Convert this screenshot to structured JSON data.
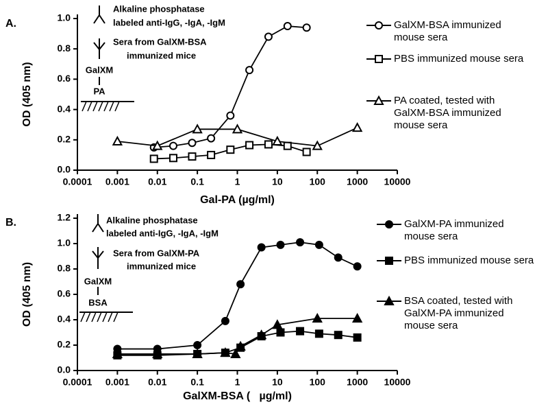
{
  "chart_data": [
    {
      "type": "line",
      "panel": "A.",
      "y_label": "OD (405 nm)",
      "x_label": "Gal-PA (µg/ml)",
      "log_x": true,
      "xlim": [
        0.0001,
        10000
      ],
      "xticks": [
        0.0001,
        0.001,
        0.01,
        0.1,
        1,
        10,
        100,
        1000,
        10000
      ],
      "ylim": [
        0,
        1.0
      ],
      "yticks": [
        {
          "value": 0,
          "label": "0.0"
        },
        0.2,
        0.4,
        0.6,
        0.8,
        {
          "value": 1,
          "label": "1.0"
        }
      ],
      "diagram": [
        "Alkaline phosphatase",
        "labeled anti-IgG, -IgA, -IgM",
        "Sera from GalXM-BSA",
        "immunized mice",
        "GalXM",
        "PA"
      ],
      "marker_fill": "white",
      "series": [
        {
          "name": "GalXM-BSA immunized mouse sera",
          "marker": "circle",
          "color": "#000000",
          "x": [
            0.0082,
            0.025,
            0.074,
            0.22,
            0.67,
            2,
            6,
            18,
            54
          ],
          "values": [
            0.15,
            0.16,
            0.18,
            0.21,
            0.36,
            0.66,
            0.88,
            0.95,
            0.94
          ]
        },
        {
          "name": "PBS immunized mouse sera",
          "marker": "square",
          "color": "#000000",
          "x": [
            0.0082,
            0.025,
            0.074,
            0.22,
            0.67,
            2,
            6,
            18,
            54
          ],
          "values": [
            0.075,
            0.08,
            0.09,
            0.1,
            0.135,
            0.165,
            0.17,
            0.16,
            0.12
          ]
        },
        {
          "name": "PA coated, tested with GalXM-BSA immunized mouse sera",
          "marker": "triangle",
          "color": "#000000",
          "x": [
            0.001,
            0.01,
            0.1,
            1,
            10,
            100,
            1000
          ],
          "values": [
            0.19,
            0.16,
            0.27,
            0.27,
            0.19,
            0.16,
            0.28
          ]
        }
      ]
    },
    {
      "type": "line",
      "panel": "B.",
      "y_label": "OD (405 nm)",
      "x_label": "GalXM-BSA (   µg/ml)",
      "log_x": true,
      "xlim": [
        0.0001,
        10000
      ],
      "xticks": [
        0.0001,
        0.001,
        0.01,
        0.1,
        1,
        10,
        100,
        1000,
        10000
      ],
      "ylim": [
        0,
        1.2
      ],
      "yticks": [
        {
          "value": 0,
          "label": "0.0"
        },
        0.2,
        0.4,
        0.6,
        0.8,
        {
          "value": 1,
          "label": "1.0"
        },
        1.2
      ],
      "diagram": [
        "Alkaline phosphatase",
        "labeled anti-IgG, -IgA, -IgM",
        "Sera from GalXM-PA",
        "immunized mice",
        "GalXM",
        "BSA"
      ],
      "marker_fill": "black",
      "series": [
        {
          "name": "GalXM-PA immunized mouse sera",
          "marker": "circle",
          "color": "#000000",
          "x": [
            0.001,
            0.01,
            0.1,
            0.5,
            1.2,
            4,
            12,
            37,
            111,
            333,
            1000
          ],
          "values": [
            0.17,
            0.17,
            0.2,
            0.39,
            0.68,
            0.97,
            0.99,
            1.01,
            0.99,
            0.89,
            0.82
          ]
        },
        {
          "name": "PBS immunized mouse sera",
          "marker": "square",
          "color": "#000000",
          "x": [
            0.001,
            0.01,
            0.1,
            0.5,
            1.2,
            4,
            12,
            37,
            111,
            333,
            1000
          ],
          "values": [
            0.12,
            0.12,
            0.13,
            0.14,
            0.18,
            0.27,
            0.3,
            0.31,
            0.29,
            0.28,
            0.26
          ]
        },
        {
          "name": "BSA coated, tested with GalXM-PA immunized mouse sera",
          "marker": "triangle",
          "color": "#000000",
          "x": [
            0.001,
            0.01,
            0.1,
            0.5,
            0.9,
            1.2,
            4,
            10,
            100,
            1000
          ],
          "values": [
            0.13,
            0.13,
            0.13,
            0.14,
            0.13,
            0.19,
            0.28,
            0.36,
            0.41,
            0.41
          ]
        }
      ]
    }
  ]
}
